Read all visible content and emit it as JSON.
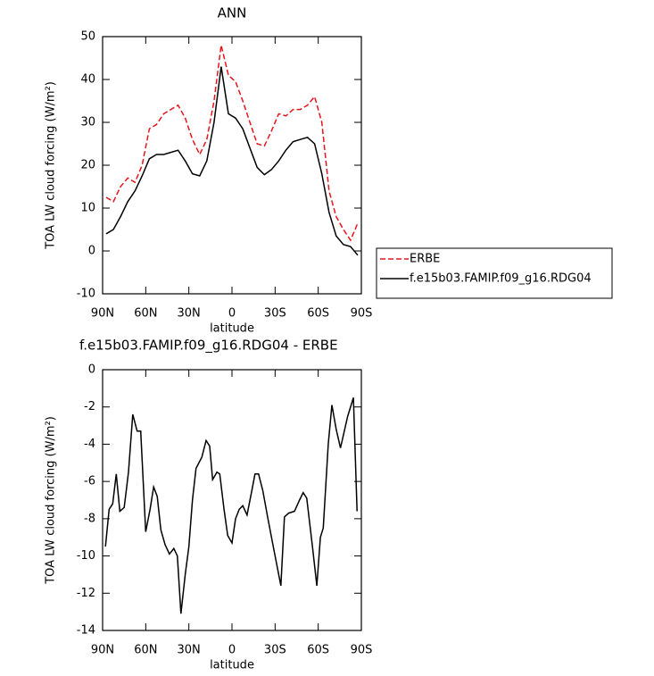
{
  "chart_data": [
    {
      "type": "line",
      "title": "ANN",
      "xlabel": "latitude",
      "ylabel": "TOA LW cloud forcing (W/m²)",
      "x": [
        87.5,
        82.5,
        77.5,
        72.5,
        67.5,
        62.5,
        57.5,
        52.5,
        47.5,
        42.5,
        37.5,
        32.5,
        27.5,
        22.5,
        17.5,
        12.5,
        7.5,
        2.5,
        -2.5,
        -7.5,
        -12.5,
        -17.5,
        -22.5,
        -27.5,
        -32.5,
        -37.5,
        -42.5,
        -47.5,
        -52.5,
        -57.5,
        -62.5,
        -67.5,
        -72.5,
        -77.5,
        -82.5,
        -87.5
      ],
      "series": [
        {
          "name": "ERBE",
          "color": "#e8141b",
          "linestyle": "dashed",
          "values": [
            12.5,
            11.5,
            15,
            17,
            16,
            20,
            28.5,
            29.5,
            32,
            33,
            34,
            31,
            26,
            22.5,
            26,
            35,
            48,
            41,
            39.5,
            35,
            30,
            25,
            24.5,
            28,
            32,
            31.5,
            33,
            33,
            34,
            36,
            30,
            14,
            8,
            5,
            2.5,
            6.5
          ]
        },
        {
          "name": "f.e15b03.FAMIP.f09_g16.RDG04",
          "color": "#000000",
          "linestyle": "solid",
          "values": [
            4,
            5,
            8,
            11.5,
            14,
            17.5,
            21.5,
            22.5,
            22.5,
            23,
            23.5,
            21,
            18,
            17.5,
            21,
            30,
            43,
            32,
            31,
            28.5,
            24,
            19.5,
            17.8,
            19,
            21,
            23.5,
            25.5,
            26,
            26.5,
            25,
            18,
            9,
            3.5,
            1.5,
            1,
            -1
          ]
        }
      ],
      "xlim": [
        90,
        -90
      ],
      "xticks": [
        {
          "value": 90,
          "label": "90N"
        },
        {
          "value": 60,
          "label": "60N"
        },
        {
          "value": 30,
          "label": "30N"
        },
        0,
        {
          "value": -30,
          "label": "30S"
        },
        {
          "value": -60,
          "label": "60S"
        },
        {
          "value": -90,
          "label": "90S"
        }
      ],
      "ylim": [
        -10,
        50
      ],
      "yticks": [
        -10,
        0,
        10,
        20,
        30,
        40,
        50
      ],
      "legend": "right",
      "grid": false
    },
    {
      "type": "line",
      "title": "f.e15b03.FAMIP.f09_g16.RDG04 - ERBE",
      "xlabel": "latitude",
      "ylabel": "TOA LW cloud forcing (W/m²)",
      "x": [
        88,
        85.5,
        83,
        80.5,
        78,
        75,
        72,
        69,
        66,
        63.5,
        60,
        57,
        54.5,
        52,
        49.5,
        46.5,
        43.5,
        40.5,
        38,
        35.5,
        32.5,
        30,
        27.5,
        25,
        21,
        18,
        15.5,
        13.5,
        10.5,
        8.5,
        5.5,
        3,
        0,
        -2.5,
        -5,
        -7.5,
        -10.5,
        -13.5,
        -16,
        -18.5,
        -21.5,
        -25,
        -28.5,
        -34,
        -36.5,
        -39.5,
        -43.5,
        -47,
        -49.5,
        -52,
        -56,
        -59,
        -61.5,
        -63.5,
        -67,
        -69.5,
        -72.5,
        -75.5,
        -80.5,
        -84.5,
        -87
      ],
      "series": [
        {
          "name": "f.e15b03.FAMIP.f09_g16.RDG04 - ERBE",
          "color": "#000000",
          "linestyle": "solid",
          "values": [
            -9.5,
            -7.5,
            -7.2,
            -5.6,
            -7.6,
            -7.4,
            -5.5,
            -2.4,
            -3.3,
            -3.3,
            -8.7,
            -7.5,
            -6.3,
            -6.8,
            -8.6,
            -9.4,
            -9.9,
            -9.6,
            -10,
            -13.1,
            -11,
            -9.5,
            -7,
            -5.3,
            -4.7,
            -3.8,
            -4.1,
            -5.9,
            -5.5,
            -5.6,
            -7.5,
            -8.9,
            -9.3,
            -8,
            -7.5,
            -7.3,
            -7.8,
            -6.6,
            -5.6,
            -5.6,
            -6.5,
            -8,
            -9.4,
            -11.6,
            -7.9,
            -7.7,
            -7.6,
            -7,
            -6.6,
            -6.9,
            -9.5,
            -11.6,
            -9,
            -8.5,
            -4,
            -1.9,
            -3.2,
            -4.2,
            -2.5,
            -1.5,
            -7.6
          ]
        }
      ],
      "xlim": [
        90,
        -90
      ],
      "xticks": [
        {
          "value": 90,
          "label": "90N"
        },
        {
          "value": 60,
          "label": "60N"
        },
        {
          "value": 30,
          "label": "30N"
        },
        0,
        {
          "value": -30,
          "label": "30S"
        },
        {
          "value": -60,
          "label": "60S"
        },
        {
          "value": -90,
          "label": "90S"
        }
      ],
      "ylim": [
        -14,
        0
      ],
      "yticks": [
        -14,
        -12,
        -10,
        -8,
        -6,
        -4,
        -2,
        0
      ],
      "grid": false
    }
  ]
}
